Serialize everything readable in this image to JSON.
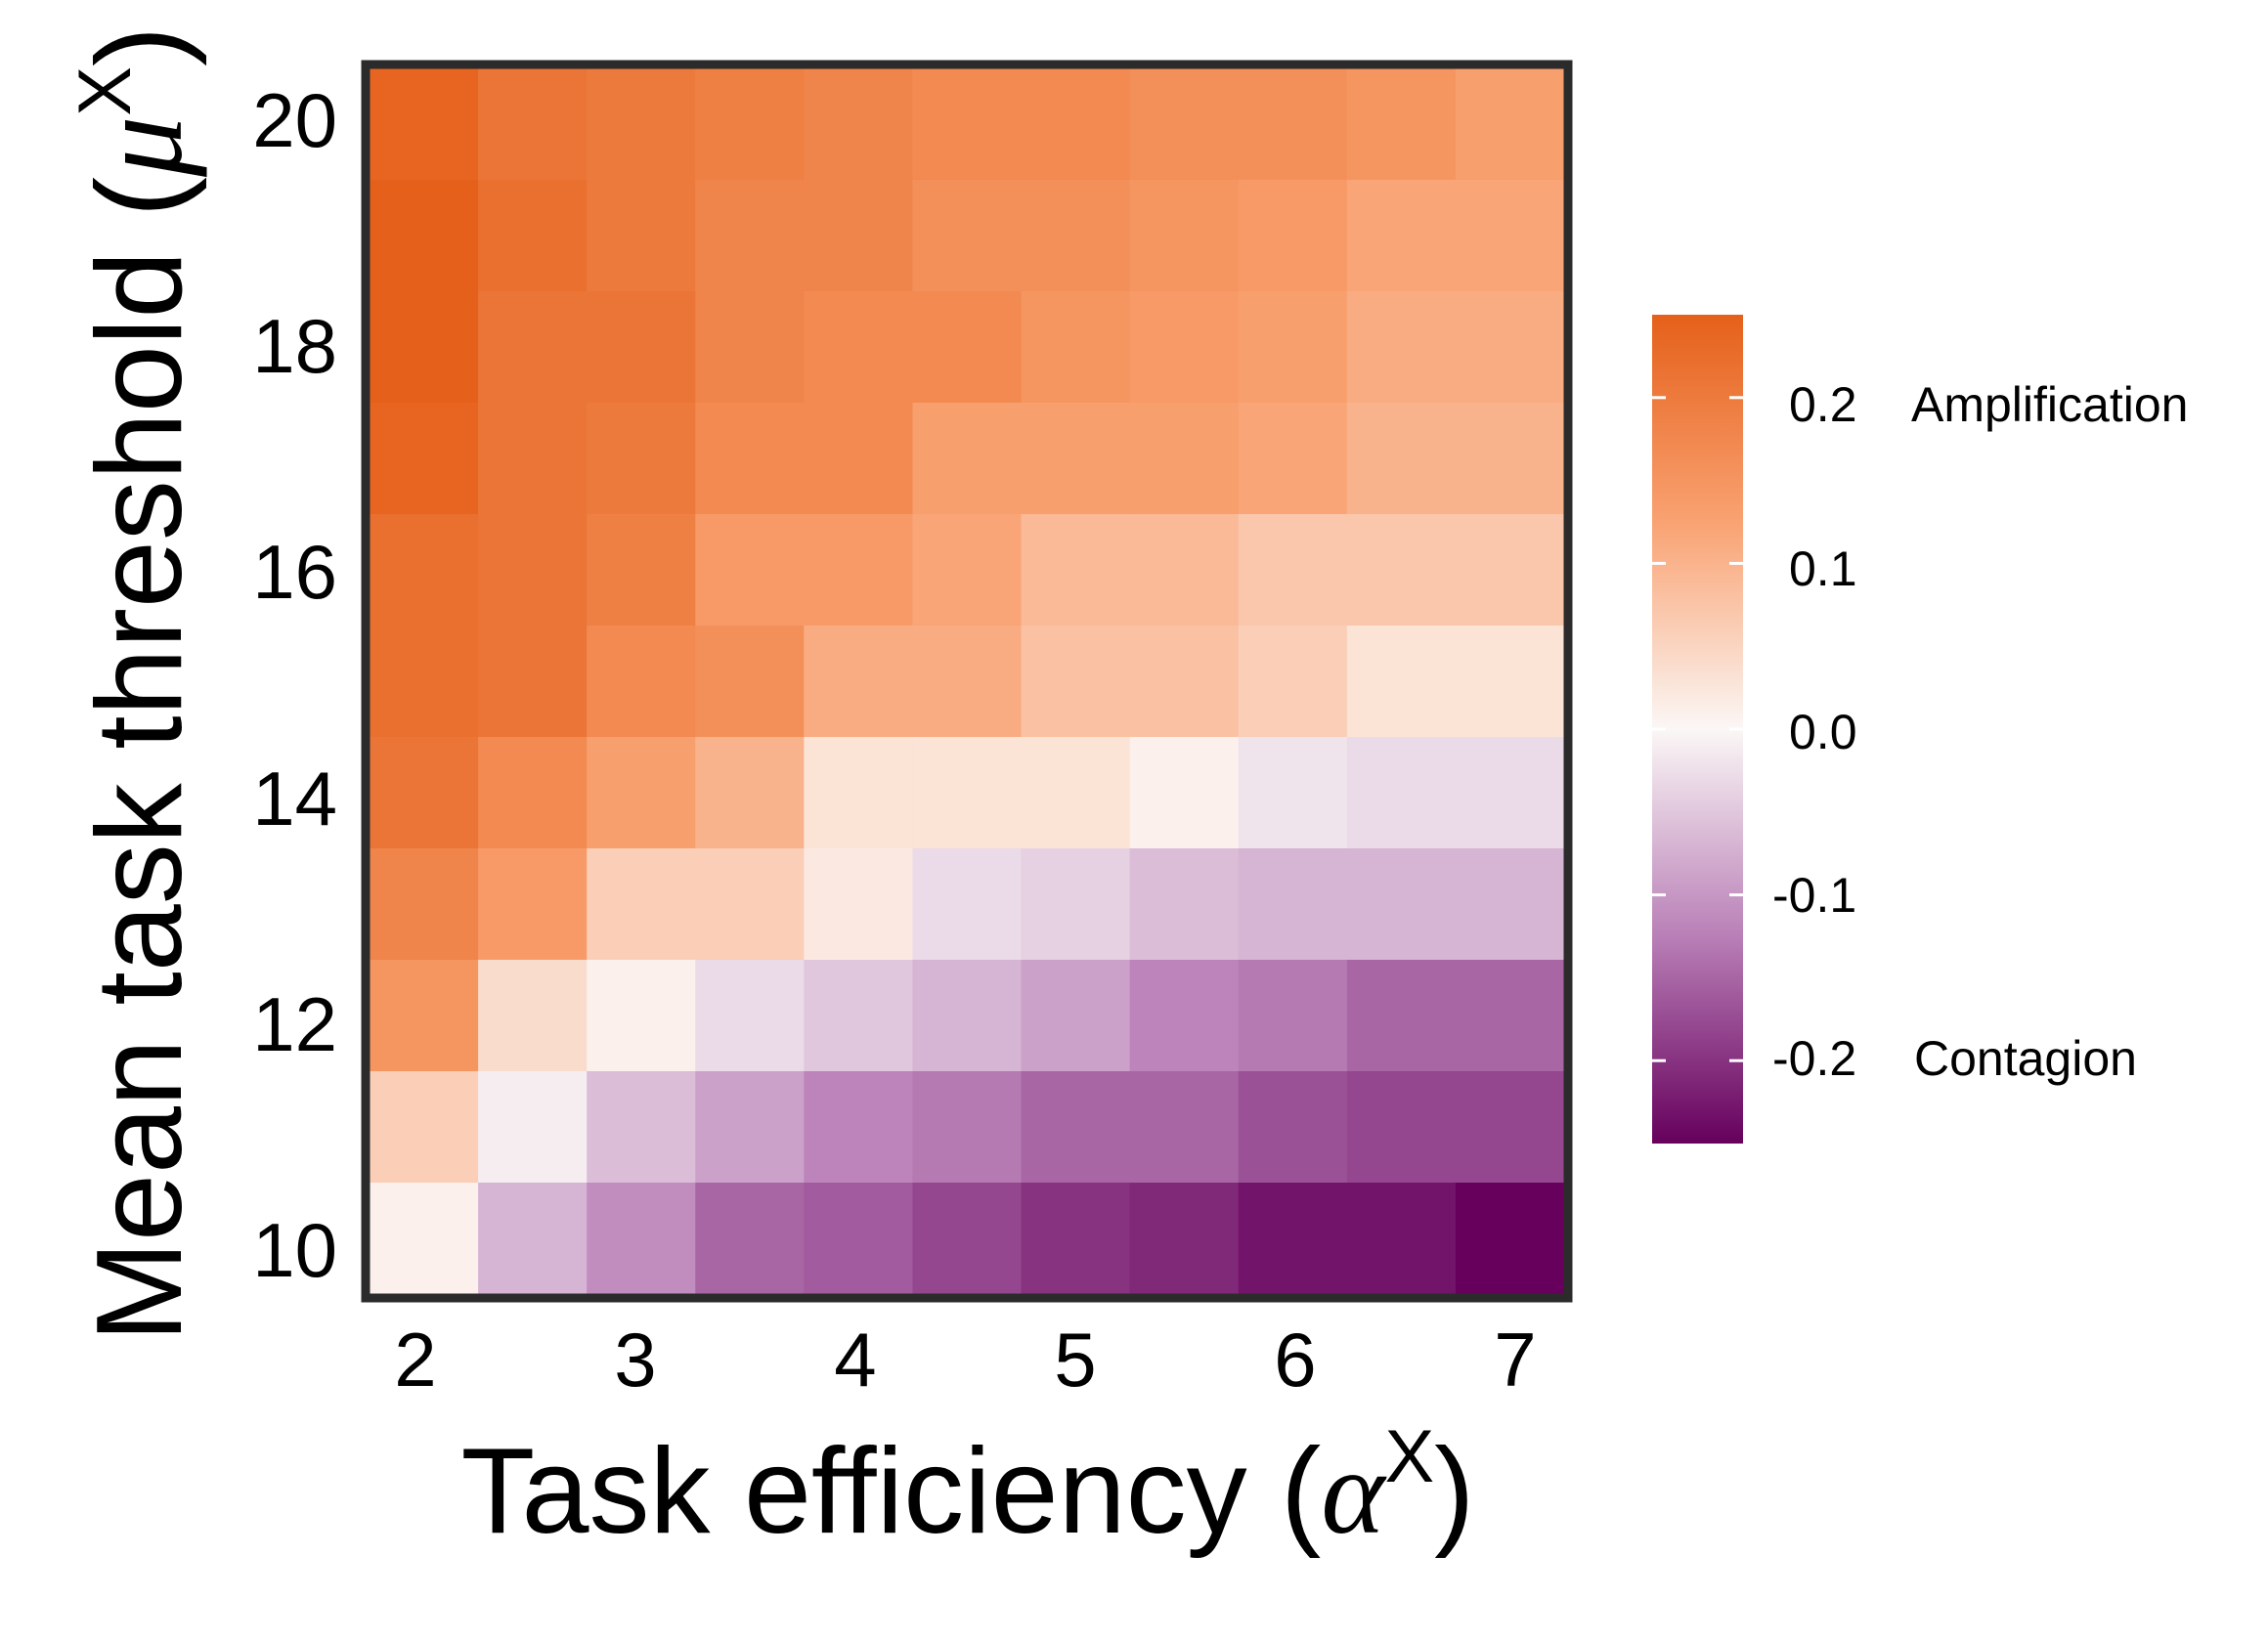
{
  "chart_data": {
    "type": "heatmap",
    "x_values": [
      2,
      2.5,
      3,
      3.5,
      4,
      4.5,
      5,
      5.5,
      6,
      6.5,
      7
    ],
    "y_values": [
      10,
      11,
      12,
      13,
      14,
      15,
      16,
      17,
      18,
      19,
      20
    ],
    "x_ticks": [
      "2",
      "3",
      "4",
      "5",
      "6",
      "7"
    ],
    "y_ticks": [
      "10",
      "12",
      "14",
      "16",
      "18",
      "20"
    ],
    "xlabel": {
      "text": "Task efficiency",
      "symbol": "α",
      "superscript": "X"
    },
    "ylabel": {
      "text": "Mean task threshold",
      "symbol": "μ",
      "superscript": "X"
    },
    "z_rows_top_to_bottom": [
      [
        0.24,
        0.21,
        0.2,
        0.19,
        0.18,
        0.17,
        0.17,
        0.16,
        0.16,
        0.15,
        0.13
      ],
      [
        0.25,
        0.22,
        0.2,
        0.18,
        0.18,
        0.16,
        0.16,
        0.15,
        0.14,
        0.12,
        0.12
      ],
      [
        0.25,
        0.21,
        0.21,
        0.18,
        0.17,
        0.17,
        0.15,
        0.14,
        0.13,
        0.11,
        0.11
      ],
      [
        0.24,
        0.21,
        0.2,
        0.17,
        0.17,
        0.13,
        0.13,
        0.13,
        0.12,
        0.1,
        0.1
      ],
      [
        0.22,
        0.21,
        0.19,
        0.14,
        0.14,
        0.12,
        0.09,
        0.09,
        0.07,
        0.07,
        0.07
      ],
      [
        0.22,
        0.21,
        0.17,
        0.16,
        0.11,
        0.11,
        0.08,
        0.08,
        0.06,
        0.03,
        0.03
      ],
      [
        0.21,
        0.17,
        0.13,
        0.1,
        0.03,
        0.03,
        0.03,
        0.01,
        -0.02,
        -0.03,
        -0.03
      ],
      [
        0.18,
        0.14,
        0.06,
        0.06,
        0.02,
        -0.03,
        -0.04,
        -0.06,
        -0.07,
        -0.07,
        -0.07
      ],
      [
        0.15,
        0.04,
        0.01,
        -0.03,
        -0.05,
        -0.07,
        -0.09,
        -0.12,
        -0.13,
        -0.15,
        -0.15
      ],
      [
        0.06,
        -0.01,
        -0.06,
        -0.09,
        -0.12,
        -0.13,
        -0.15,
        -0.15,
        -0.17,
        -0.18,
        -0.18
      ],
      [
        0.01,
        -0.07,
        -0.11,
        -0.15,
        -0.16,
        -0.18,
        -0.2,
        -0.21,
        -0.23,
        -0.23,
        -0.25
      ]
    ],
    "colorbar": {
      "range": [
        -0.25,
        0.25
      ],
      "ticks": [
        "0.2",
        "0.1",
        "0.0",
        "-0.1",
        "-0.2"
      ],
      "tick_values": [
        0.2,
        0.1,
        0.0,
        -0.1,
        -0.2
      ],
      "high_label": "Amplification",
      "low_label": "Contagion",
      "colors": {
        "high": "#e5601a",
        "mid": "#fbf7f6",
        "low": "#66005c"
      }
    }
  }
}
